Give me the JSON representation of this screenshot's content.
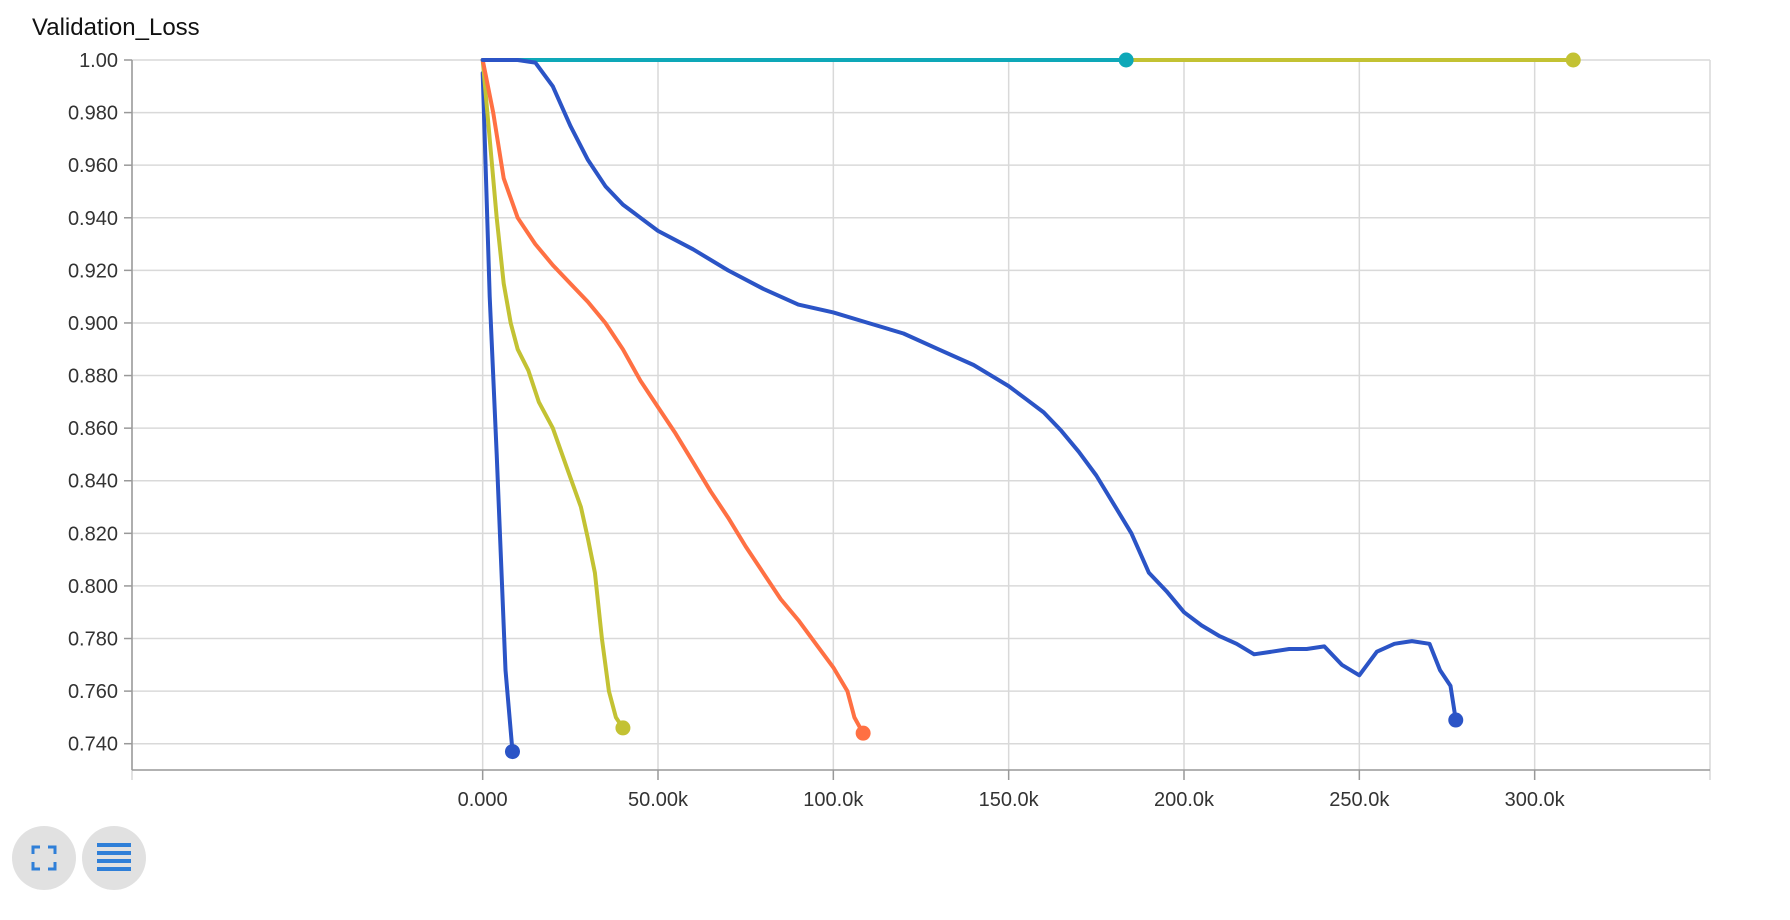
{
  "chart_data": {
    "type": "line",
    "title": "Validation_Loss",
    "xlabel": "",
    "ylabel": "",
    "xlim": [
      -100000,
      350000
    ],
    "ylim": [
      0.73,
      1.0
    ],
    "grid": true,
    "x_ticks": [
      0,
      50000,
      100000,
      150000,
      200000,
      250000,
      300000
    ],
    "x_tick_labels": [
      "0.000",
      "50.00k",
      "100.0k",
      "150.0k",
      "200.0k",
      "250.0k",
      "300.0k"
    ],
    "y_ticks": [
      1.0,
      0.98,
      0.96,
      0.94,
      0.92,
      0.9,
      0.88,
      0.86,
      0.84,
      0.82,
      0.8,
      0.78,
      0.76,
      0.74
    ],
    "y_tick_labels": [
      "1.00",
      "0.980",
      "0.960",
      "0.940",
      "0.920",
      "0.900",
      "0.880",
      "0.860",
      "0.840",
      "0.820",
      "0.800",
      "0.780",
      "0.760",
      "0.740"
    ],
    "series": [
      {
        "color": "#c3c233",
        "x": [
          0,
          30000,
          60000,
          100000,
          150000,
          200000,
          250000,
          300000,
          311000
        ],
        "values": [
          1.0,
          1.0,
          1.0,
          1.0,
          1.0,
          1.0,
          1.0,
          1.0,
          1.0
        ]
      },
      {
        "color": "#0ea8b8",
        "x": [
          0,
          50000,
          100000,
          150000,
          183500
        ],
        "values": [
          1.0,
          1.0,
          1.0,
          1.0,
          1.0
        ]
      },
      {
        "color": "#2b54c6",
        "x": [
          0,
          2000,
          4000,
          6500,
          8500
        ],
        "values": [
          0.995,
          0.91,
          0.85,
          0.768,
          0.737
        ]
      },
      {
        "color": "#c3c233",
        "x": [
          0,
          2000,
          4000,
          6000,
          8000,
          10000,
          13000,
          16000,
          20000,
          24000,
          28000,
          30000,
          32000,
          34000,
          36000,
          38000,
          40000
        ],
        "values": [
          1.0,
          0.97,
          0.94,
          0.915,
          0.9,
          0.89,
          0.882,
          0.87,
          0.86,
          0.845,
          0.83,
          0.818,
          0.805,
          0.78,
          0.76,
          0.75,
          0.746
        ]
      },
      {
        "color": "#ff7043",
        "x": [
          0,
          3000,
          6000,
          10000,
          15000,
          20000,
          25000,
          30000,
          35000,
          40000,
          45000,
          50000,
          55000,
          60000,
          65000,
          70000,
          75000,
          80000,
          85000,
          90000,
          95000,
          100000,
          104000,
          106000,
          108500
        ],
        "values": [
          1.0,
          0.98,
          0.955,
          0.94,
          0.93,
          0.922,
          0.915,
          0.908,
          0.9,
          0.89,
          0.878,
          0.868,
          0.858,
          0.847,
          0.836,
          0.826,
          0.815,
          0.805,
          0.795,
          0.787,
          0.778,
          0.769,
          0.76,
          0.75,
          0.744
        ]
      },
      {
        "color": "#2b54c6",
        "x": [
          0,
          5000,
          10000,
          15000,
          20000,
          25000,
          30000,
          35000,
          40000,
          45000,
          50000,
          60000,
          70000,
          80000,
          90000,
          100000,
          110000,
          120000,
          130000,
          140000,
          150000,
          155000,
          160000,
          165000,
          170000,
          175000,
          180000,
          185000,
          190000,
          195000,
          200000,
          205000,
          210000,
          215000,
          220000,
          225000,
          230000,
          235000,
          240000,
          245000,
          250000,
          255000,
          260000,
          265000,
          270000,
          273000,
          276000,
          277500
        ],
        "values": [
          1.0,
          1.0,
          1.0,
          0.999,
          0.99,
          0.975,
          0.962,
          0.952,
          0.945,
          0.94,
          0.935,
          0.928,
          0.92,
          0.913,
          0.907,
          0.904,
          0.9,
          0.896,
          0.89,
          0.884,
          0.876,
          0.871,
          0.866,
          0.859,
          0.851,
          0.842,
          0.831,
          0.82,
          0.805,
          0.798,
          0.79,
          0.785,
          0.781,
          0.778,
          0.774,
          0.775,
          0.776,
          0.776,
          0.777,
          0.77,
          0.766,
          0.775,
          0.778,
          0.779,
          0.778,
          0.768,
          0.762,
          0.749
        ]
      }
    ]
  },
  "controls": {
    "expand_icon": "expand-icon",
    "data_table_icon": "list-icon"
  }
}
